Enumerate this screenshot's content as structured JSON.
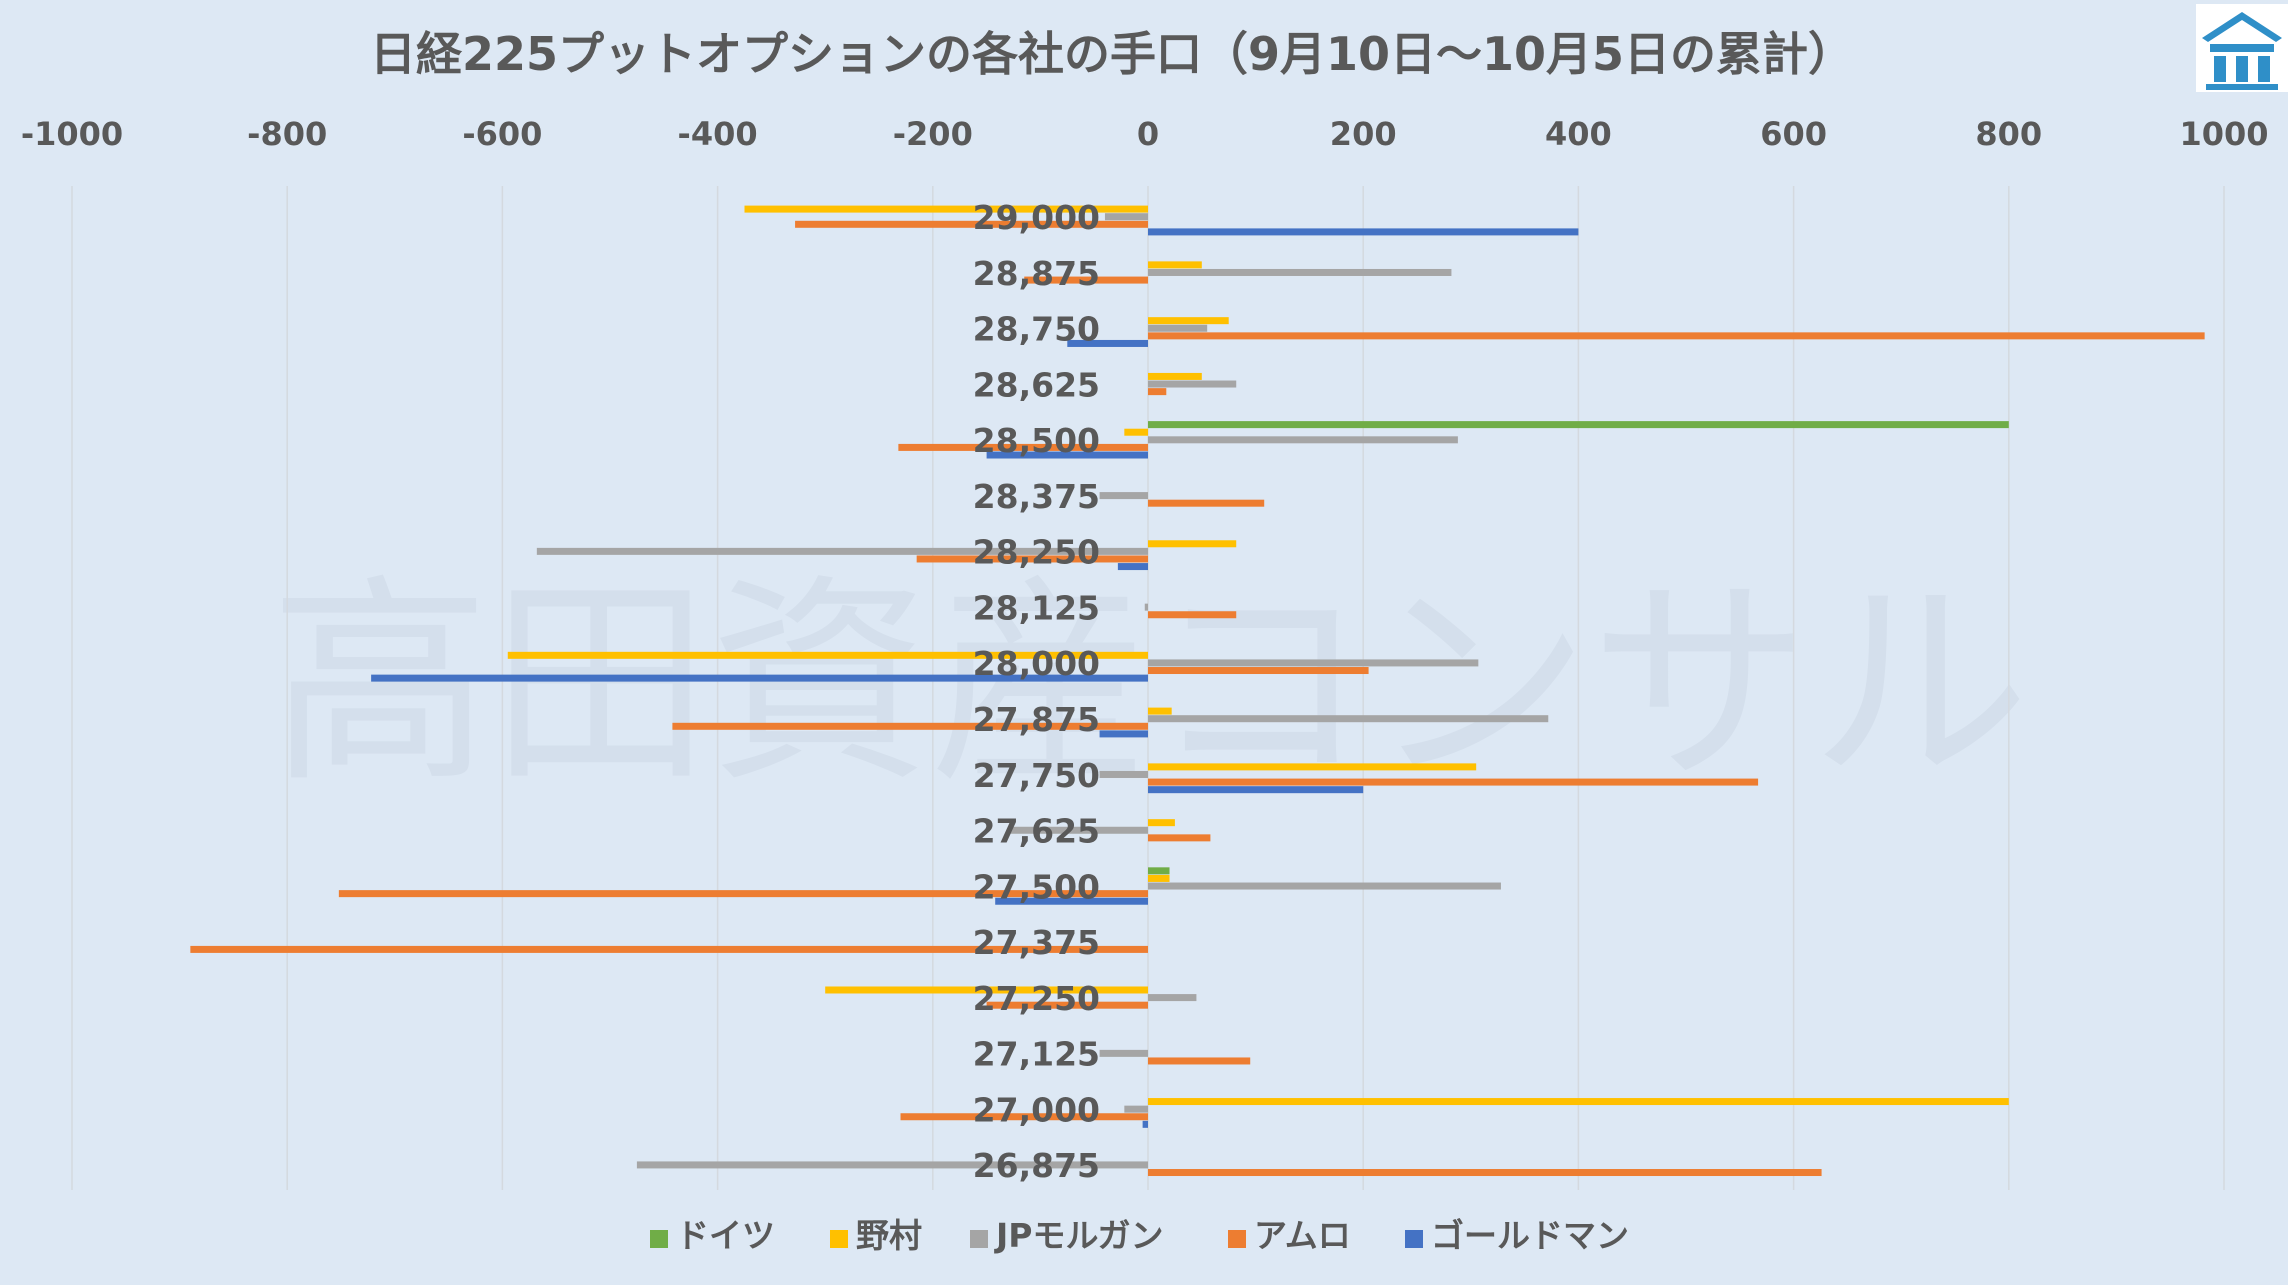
{
  "chart_data": {
    "type": "bar",
    "orientation": "horizontal",
    "title": "日経225プットオプションの各社の手口（9月10日～10月5日の累計）",
    "xlim": [
      -1000,
      1000
    ],
    "xticks": [
      -1000,
      -800,
      -600,
      -400,
      -200,
      0,
      200,
      400,
      600,
      800,
      1000
    ],
    "xtick_labels": [
      "-1000",
      "-800",
      "-600",
      "-400",
      "-200",
      "0",
      "200",
      "400",
      "600",
      "800",
      "1000"
    ],
    "grid": true,
    "legend_position": "bottom",
    "categories": [
      "29,000",
      "28,875",
      "28,750",
      "28,625",
      "28,500",
      "28,375",
      "28,250",
      "28,125",
      "28,000",
      "27,875",
      "27,750",
      "27,625",
      "27,500",
      "27,375",
      "27,250",
      "27,125",
      "27,000",
      "26,875"
    ],
    "series": [
      {
        "name": "ドイツ",
        "color": "#70ad47",
        "values": [
          0,
          0,
          0,
          0,
          800,
          0,
          0,
          0,
          0,
          0,
          0,
          0,
          20,
          0,
          0,
          0,
          0,
          0
        ]
      },
      {
        "name": "野村",
        "color": "#ffc000",
        "values": [
          -375,
          50,
          75,
          50,
          -22,
          0,
          82,
          0,
          -595,
          22,
          305,
          25,
          20,
          0,
          -300,
          0,
          800,
          0
        ]
      },
      {
        "name": "JPモルガン",
        "color": "#a5a5a5",
        "values": [
          -40,
          282,
          55,
          82,
          288,
          -45,
          -568,
          -3,
          307,
          372,
          -45,
          -130,
          328,
          0,
          45,
          -45,
          -22,
          -475
        ]
      },
      {
        "name": "アムロ",
        "color": "#ed7d31",
        "values": [
          -328,
          -115,
          982,
          17,
          -232,
          108,
          -215,
          82,
          205,
          -442,
          567,
          58,
          -752,
          -890,
          -150,
          95,
          -230,
          626
        ]
      },
      {
        "name": "ゴールドマン",
        "color": "#4472c4",
        "values": [
          400,
          0,
          -75,
          0,
          -150,
          0,
          -28,
          0,
          -722,
          -45,
          200,
          0,
          -142,
          0,
          0,
          0,
          -5,
          0
        ]
      }
    ]
  },
  "watermark": "高田資産コンサル",
  "logo": "logo-icon"
}
